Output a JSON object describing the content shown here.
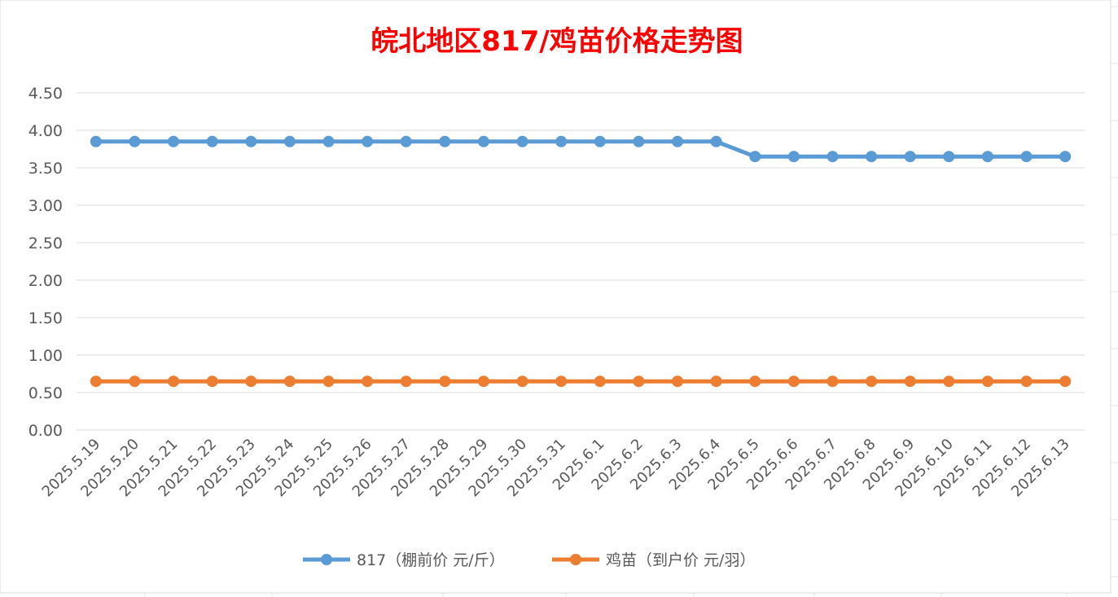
{
  "chart_data": {
    "type": "line",
    "title": "皖北地区817/鸡苗价格走势图",
    "xlabel": "",
    "ylabel": "",
    "ylim": [
      0,
      4.5
    ],
    "yticks": [
      "0.00",
      "0.50",
      "1.00",
      "1.50",
      "2.00",
      "2.50",
      "3.00",
      "3.50",
      "4.00",
      "4.50"
    ],
    "grid": true,
    "legend_position": "bottom",
    "categories": [
      "2025.5.19",
      "2025.5.20",
      "2025.5.21",
      "2025.5.22",
      "2025.5.23",
      "2025.5.24",
      "2025.5.25",
      "2025.5.26",
      "2025.5.27",
      "2025.5.28",
      "2025.5.29",
      "2025.5.30",
      "2025.5.31",
      "2025.6.1",
      "2025.6.2",
      "2025.6.3",
      "2025.6.4",
      "2025.6.5",
      "2025.6.6",
      "2025.6.7",
      "2025.6.8",
      "2025.6.9",
      "2025.6.10",
      "2025.6.11",
      "2025.6.12",
      "2025.6.13"
    ],
    "series": [
      {
        "name": "817（棚前价 元/斤）",
        "color": "#5b9bd5",
        "values": [
          3.85,
          3.85,
          3.85,
          3.85,
          3.85,
          3.85,
          3.85,
          3.85,
          3.85,
          3.85,
          3.85,
          3.85,
          3.85,
          3.85,
          3.85,
          3.85,
          3.85,
          3.65,
          3.65,
          3.65,
          3.65,
          3.65,
          3.65,
          3.65,
          3.65,
          3.65
        ]
      },
      {
        "name": "鸡苗（到户价 元/羽）",
        "color": "#ed7d31",
        "values": [
          0.65,
          0.65,
          0.65,
          0.65,
          0.65,
          0.65,
          0.65,
          0.65,
          0.65,
          0.65,
          0.65,
          0.65,
          0.65,
          0.65,
          0.65,
          0.65,
          0.65,
          0.65,
          0.65,
          0.65,
          0.65,
          0.65,
          0.65,
          0.65,
          0.65,
          0.65
        ]
      }
    ]
  }
}
